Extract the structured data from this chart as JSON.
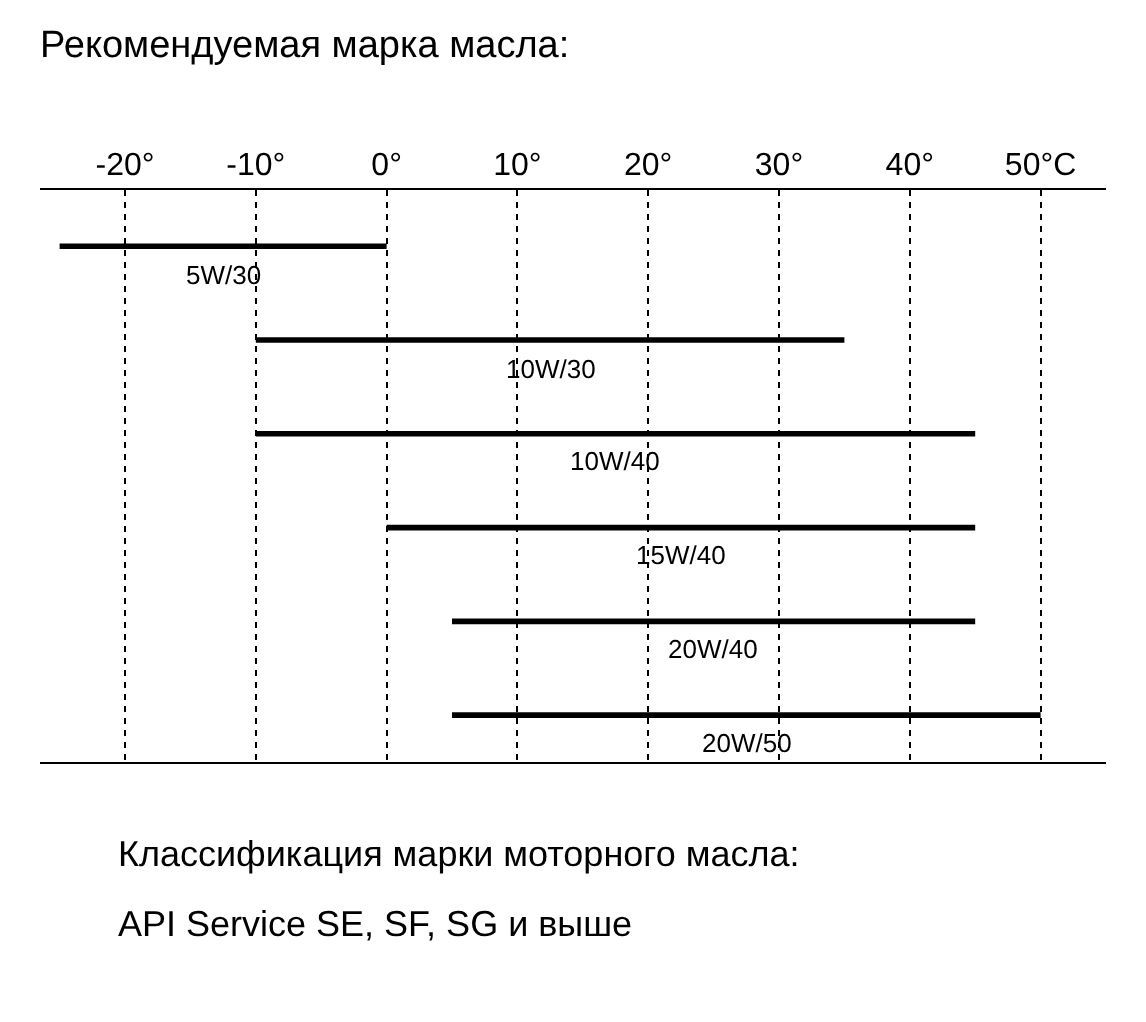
{
  "chart_data": {
    "type": "bar",
    "orientation": "horizontal",
    "title": "Рекомендуемая марка масла:",
    "categories": [
      "5W/30",
      "10W/30",
      "10W/40",
      "15W/40",
      "20W/40",
      "20W/50"
    ],
    "base": [
      -25,
      -10,
      -10,
      0,
      5,
      5
    ],
    "values": [
      25,
      45,
      55,
      45,
      40,
      45
    ],
    "color": "#000000",
    "xlim": [
      -26.5,
      55
    ],
    "xticks": [
      {
        "value": -20,
        "label": "-20°"
      },
      {
        "value": -10,
        "label": "-10°"
      },
      {
        "value": 0,
        "label": "0°"
      },
      {
        "value": 10,
        "label": "10°"
      },
      {
        "value": 20,
        "label": "20°"
      },
      {
        "value": 30,
        "label": "30°"
      },
      {
        "value": 40,
        "label": "40°"
      },
      {
        "value": 50,
        "label": "50°C"
      }
    ],
    "grid": "x",
    "line_style": "dotted",
    "tick_labels": "x",
    "annotations": [
      "Классификация марки моторного масла:",
      "API Service SE, SF, SG и выше"
    ]
  }
}
